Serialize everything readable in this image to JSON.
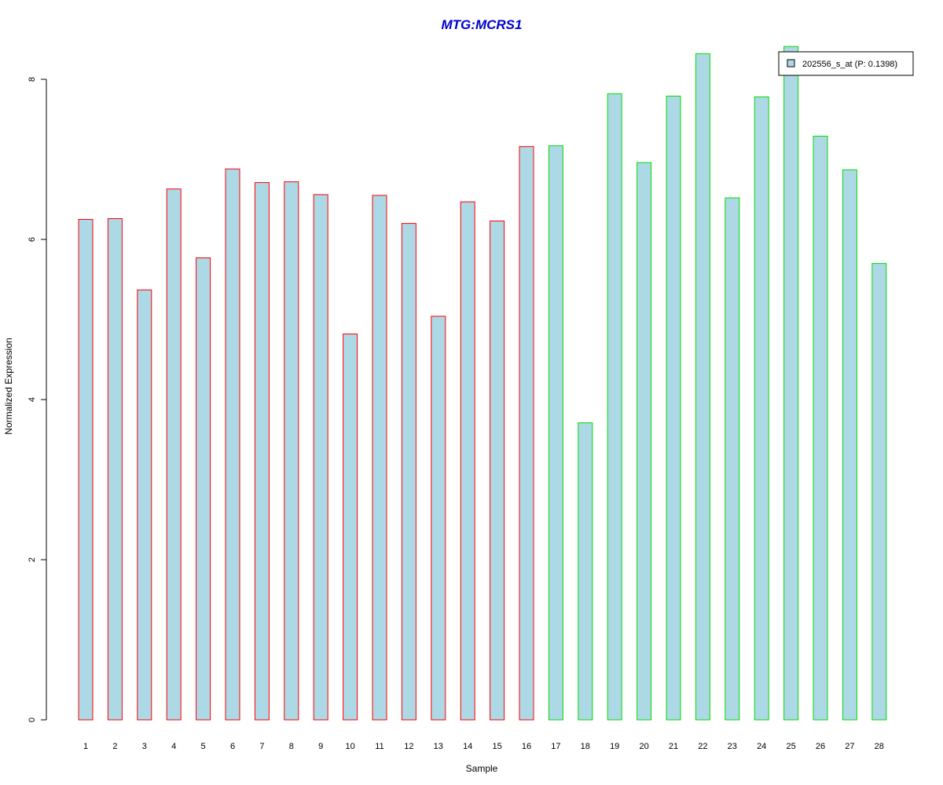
{
  "chart_data": {
    "type": "bar",
    "title": "MTG:MCRS1",
    "xlabel": "Sample",
    "ylabel": "Normalized Expression",
    "ylim": [
      0,
      8.4
    ],
    "y_ticks": [
      0,
      2,
      4,
      6,
      8
    ],
    "categories": [
      "1",
      "2",
      "3",
      "4",
      "5",
      "6",
      "7",
      "8",
      "9",
      "10",
      "11",
      "12",
      "13",
      "14",
      "15",
      "16",
      "17",
      "18",
      "19",
      "20",
      "21",
      "22",
      "23",
      "24",
      "25",
      "26",
      "27",
      "28"
    ],
    "values": [
      6.25,
      6.26,
      5.37,
      6.63,
      5.77,
      6.88,
      6.71,
      6.72,
      6.56,
      4.82,
      6.55,
      6.2,
      5.04,
      6.47,
      6.23,
      7.16,
      7.17,
      3.71,
      7.82,
      6.96,
      7.79,
      8.32,
      6.52,
      7.78,
      8.41,
      7.29,
      6.87,
      5.7
    ],
    "groups": [
      "red",
      "red",
      "red",
      "red",
      "red",
      "red",
      "red",
      "red",
      "red",
      "red",
      "red",
      "red",
      "red",
      "red",
      "red",
      "red",
      "green",
      "green",
      "green",
      "green",
      "green",
      "green",
      "green",
      "green",
      "green",
      "green",
      "green",
      "green"
    ],
    "legend": {
      "label": "202556_s_at (P: 0.1398)",
      "position": "top-right"
    },
    "grid": false,
    "colors": {
      "title": "#0000cc",
      "bar_fill": "#add8e6",
      "red_border": "#ff0000",
      "green_border": "#00dd00",
      "axis": "#000000"
    }
  }
}
